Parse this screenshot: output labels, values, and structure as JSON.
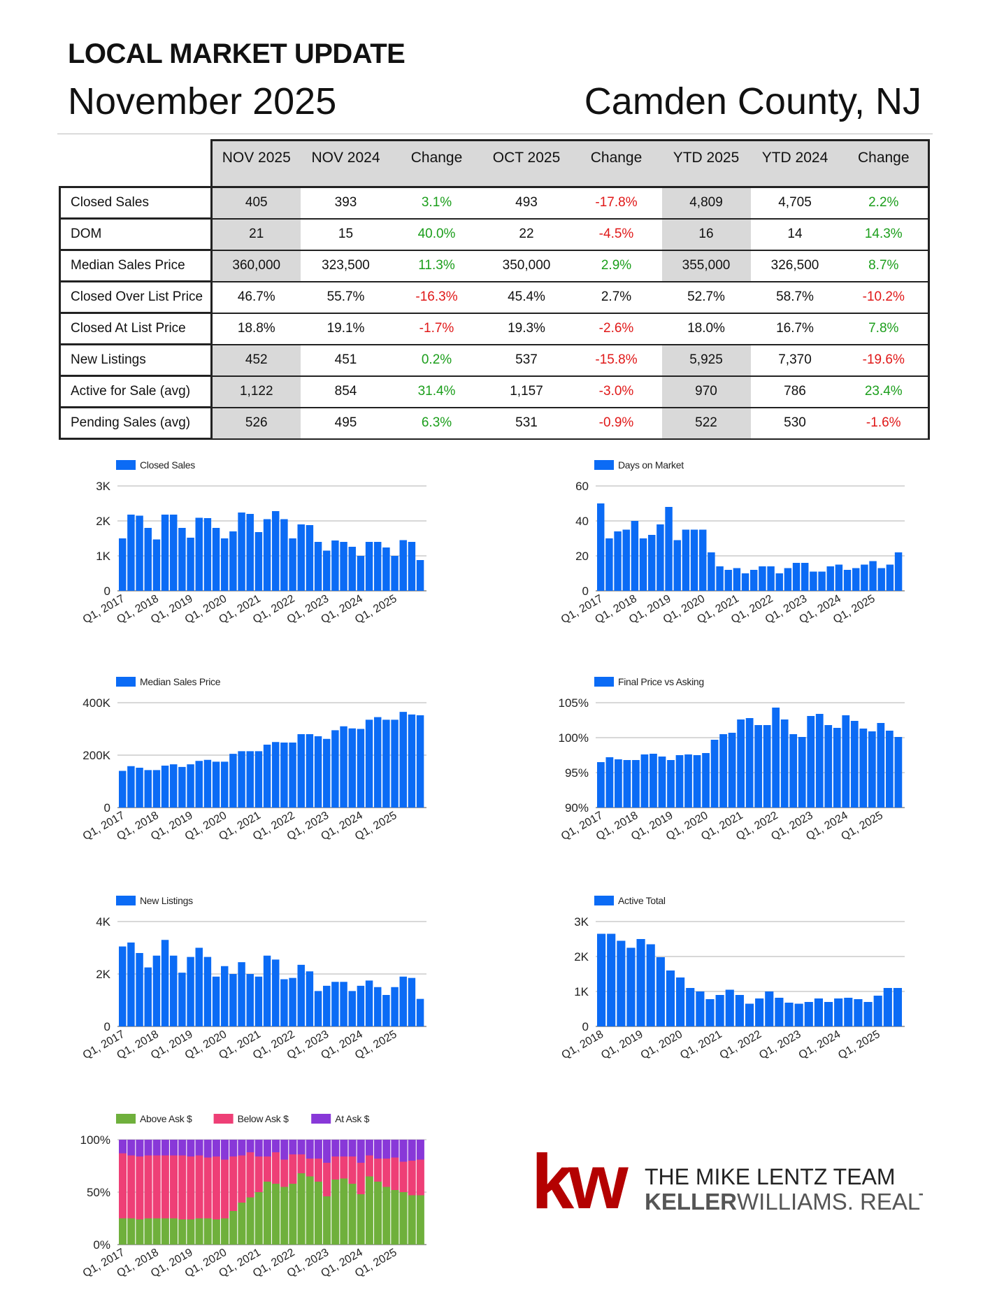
{
  "header": {
    "title": "LOCAL MARKET UPDATE",
    "month": "November 2025",
    "region": "Camden County, NJ"
  },
  "table": {
    "columns": [
      "NOV 2025",
      "NOV 2024",
      "Change",
      "OCT 2025",
      "Change",
      "YTD 2025",
      "YTD 2024",
      "Change"
    ],
    "rows": [
      {
        "label": "Closed Sales",
        "values": [
          "405",
          "393",
          "3.1%",
          "493",
          "-17.8%",
          "4,809",
          "4,705",
          "2.2%"
        ]
      },
      {
        "label": "DOM",
        "values": [
          "21",
          "15",
          "40.0%",
          "22",
          "-4.5%",
          "16",
          "14",
          "14.3%"
        ]
      },
      {
        "label": "Median Sales Price",
        "values": [
          "360,000",
          "323,500",
          "11.3%",
          "350,000",
          "2.9%",
          "355,000",
          "326,500",
          "8.7%"
        ]
      },
      {
        "label": "Closed Over List Price",
        "values": [
          "46.7%",
          "55.7%",
          "-16.3%",
          "45.4%",
          "2.7%",
          "52.7%",
          "58.7%",
          "-10.2%"
        ]
      },
      {
        "label": "Closed At List Price",
        "values": [
          "18.8%",
          "19.1%",
          "-1.7%",
          "19.3%",
          "-2.6%",
          "18.0%",
          "16.7%",
          "7.8%"
        ]
      },
      {
        "label": "New Listings",
        "values": [
          "452",
          "451",
          "0.2%",
          "537",
          "-15.8%",
          "5,925",
          "7,370",
          "-19.6%"
        ]
      },
      {
        "label": "Active for Sale (avg)",
        "values": [
          "1,122",
          "854",
          "31.4%",
          "1,157",
          "-3.0%",
          "970",
          "786",
          "23.4%"
        ]
      },
      {
        "label": "Pending Sales (avg)",
        "values": [
          "526",
          "495",
          "6.3%",
          "531",
          "-0.9%",
          "522",
          "530",
          "-1.6%"
        ]
      }
    ],
    "colors": {
      "positive": "#1b9e1b",
      "negative": "#e01818",
      "shaded": "#d9d9d9"
    }
  },
  "chart_data": [
    {
      "type": "bar",
      "legend": "Closed Sales",
      "xticks": [
        "Q1, 2017",
        "Q1, 2018",
        "Q1, 2019",
        "Q1, 2020",
        "Q1, 2021",
        "Q1, 2022",
        "Q1, 2023",
        "Q1, 2024",
        "Q1, 2025"
      ],
      "yticks": [
        "0",
        "1K",
        "2K",
        "3K"
      ],
      "ylim": [
        0,
        3000
      ],
      "values": [
        1500,
        2180,
        2150,
        1800,
        1470,
        2180,
        2180,
        1800,
        1520,
        2090,
        2080,
        1800,
        1500,
        1700,
        2240,
        2200,
        1680,
        2050,
        2280,
        2050,
        1500,
        1900,
        1880,
        1400,
        1150,
        1440,
        1400,
        1260,
        1000,
        1400,
        1400,
        1240,
        1000,
        1450,
        1400,
        880
      ],
      "color": "#0b6bf5"
    },
    {
      "type": "bar",
      "legend": "Days on Market",
      "xticks": [
        "Q1, 2017",
        "Q1, 2018",
        "Q1, 2019",
        "Q1, 2020",
        "Q1, 2021",
        "Q1, 2022",
        "Q1, 2023",
        "Q1, 2024",
        "Q1, 2025"
      ],
      "yticks": [
        "0",
        "20",
        "40",
        "60"
      ],
      "ylim": [
        0,
        60
      ],
      "values": [
        50,
        30,
        34,
        35,
        40,
        30,
        32,
        38,
        48,
        29,
        35,
        35,
        35,
        22,
        14,
        12,
        13,
        10,
        12,
        14,
        14,
        10,
        13,
        16,
        16,
        11,
        11,
        14,
        15,
        12,
        13,
        15,
        17,
        13,
        15,
        22
      ],
      "color": "#0b6bf5"
    },
    {
      "type": "bar",
      "legend": "Median Sales Price",
      "xticks": [
        "Q1, 2017",
        "Q1, 2018",
        "Q1, 2019",
        "Q1, 2020",
        "Q1, 2021",
        "Q1, 2022",
        "Q1, 2023",
        "Q1, 2024",
        "Q1, 2025"
      ],
      "yticks": [
        "0",
        "200K",
        "400K"
      ],
      "ylim": [
        0,
        400000
      ],
      "values": [
        140000,
        158000,
        152000,
        143000,
        143000,
        160000,
        165000,
        155000,
        165000,
        178000,
        182000,
        175000,
        175000,
        205000,
        215000,
        215000,
        215000,
        240000,
        250000,
        248000,
        248000,
        280000,
        280000,
        272000,
        262000,
        295000,
        310000,
        302000,
        300000,
        335000,
        345000,
        335000,
        335000,
        365000,
        355000,
        352000
      ],
      "color": "#0b6bf5"
    },
    {
      "type": "bar",
      "legend": "Final Price vs Asking",
      "xticks": [
        "Q1, 2017",
        "Q1, 2018",
        "Q1, 2019",
        "Q1, 2020",
        "Q1, 2021",
        "Q1, 2022",
        "Q1, 2023",
        "Q1, 2024",
        "Q1, 2025"
      ],
      "yticks": [
        "90%",
        "95%",
        "100%",
        "105%"
      ],
      "ylim": [
        90,
        105
      ],
      "values": [
        96.5,
        97.2,
        96.9,
        96.8,
        96.8,
        97.6,
        97.7,
        97.3,
        96.8,
        97.5,
        97.6,
        97.5,
        97.8,
        99.7,
        100.5,
        100.7,
        102.6,
        102.8,
        101.8,
        101.8,
        104.3,
        102.6,
        100.5,
        100.1,
        103.1,
        103.4,
        101.8,
        101.4,
        103.2,
        102.4,
        101.3,
        100.9,
        102.1,
        101.0,
        100.1
      ],
      "color": "#0b6bf5"
    },
    {
      "type": "bar",
      "legend": "New Listings",
      "xticks": [
        "Q1, 2017",
        "Q1, 2018",
        "Q1, 2019",
        "Q1, 2020",
        "Q1, 2021",
        "Q1, 2022",
        "Q1, 2023",
        "Q1, 2024",
        "Q1, 2025"
      ],
      "yticks": [
        "0",
        "2K",
        "4K"
      ],
      "ylim": [
        0,
        4000
      ],
      "values": [
        3050,
        3200,
        2800,
        2250,
        2700,
        3300,
        2700,
        2050,
        2650,
        3000,
        2650,
        1900,
        2300,
        2000,
        2450,
        2000,
        1900,
        2700,
        2550,
        1800,
        1850,
        2350,
        2100,
        1350,
        1550,
        1700,
        1700,
        1350,
        1550,
        1750,
        1500,
        1200,
        1500,
        1900,
        1850,
        1050
      ],
      "color": "#0b6bf5"
    },
    {
      "type": "bar",
      "legend": "Active Total",
      "xticks": [
        "Q1, 2018",
        "Q1, 2019",
        "Q1, 2020",
        "Q1, 2021",
        "Q1, 2022",
        "Q1, 2023",
        "Q1, 2024",
        "Q1, 2025"
      ],
      "yticks": [
        "0",
        "1K",
        "2K",
        "3K"
      ],
      "ylim": [
        0,
        3000
      ],
      "values": [
        2650,
        2650,
        2450,
        2250,
        2500,
        2350,
        1980,
        1600,
        1400,
        1100,
        1000,
        780,
        900,
        1050,
        900,
        650,
        800,
        1000,
        820,
        680,
        650,
        700,
        800,
        700,
        800,
        820,
        780,
        700,
        880,
        1100,
        1100
      ],
      "color": "#0b6bf5"
    },
    {
      "type": "bar",
      "stacked": true,
      "xticks": [
        "Q1, 2017",
        "Q1, 2018",
        "Q1, 2019",
        "Q1, 2020",
        "Q1, 2021",
        "Q1, 2022",
        "Q1, 2023",
        "Q1, 2024",
        "Q1, 2025"
      ],
      "yticks": [
        "0%",
        "50%",
        "100%"
      ],
      "ylim": [
        0,
        100
      ],
      "series": [
        {
          "name": "Above Ask $",
          "color": "#6fb03c",
          "values": [
            25,
            25,
            24,
            25,
            25,
            25,
            25,
            24,
            24,
            25,
            25,
            24,
            25,
            32,
            40,
            45,
            50,
            60,
            58,
            55,
            58,
            68,
            65,
            60,
            46,
            62,
            63,
            58,
            48,
            65,
            60,
            55,
            52,
            50,
            47,
            47
          ]
        },
        {
          "name": "Below Ask $",
          "color": "#ee3f76",
          "values": [
            62,
            60,
            60,
            60,
            60,
            60,
            60,
            61,
            60,
            60,
            58,
            60,
            56,
            52,
            45,
            43,
            34,
            24,
            30,
            26,
            28,
            18,
            17,
            22,
            32,
            22,
            21,
            26,
            30,
            20,
            22,
            27,
            31,
            29,
            33,
            34
          ]
        },
        {
          "name": "At Ask $",
          "color": "#8838d8",
          "values": [
            13,
            15,
            16,
            15,
            15,
            15,
            15,
            15,
            16,
            15,
            17,
            16,
            19,
            16,
            15,
            12,
            16,
            16,
            12,
            19,
            14,
            14,
            18,
            18,
            22,
            16,
            16,
            16,
            22,
            15,
            18,
            18,
            17,
            21,
            20,
            19
          ]
        }
      ]
    }
  ],
  "logo": {
    "mark": "kw",
    "line1": "THE MIKE LENTZ TEAM",
    "line2a": "KELLER",
    "line2b": "WILLIAMS.",
    "line2c": " REALTY",
    "brand_color": "#b40101"
  }
}
